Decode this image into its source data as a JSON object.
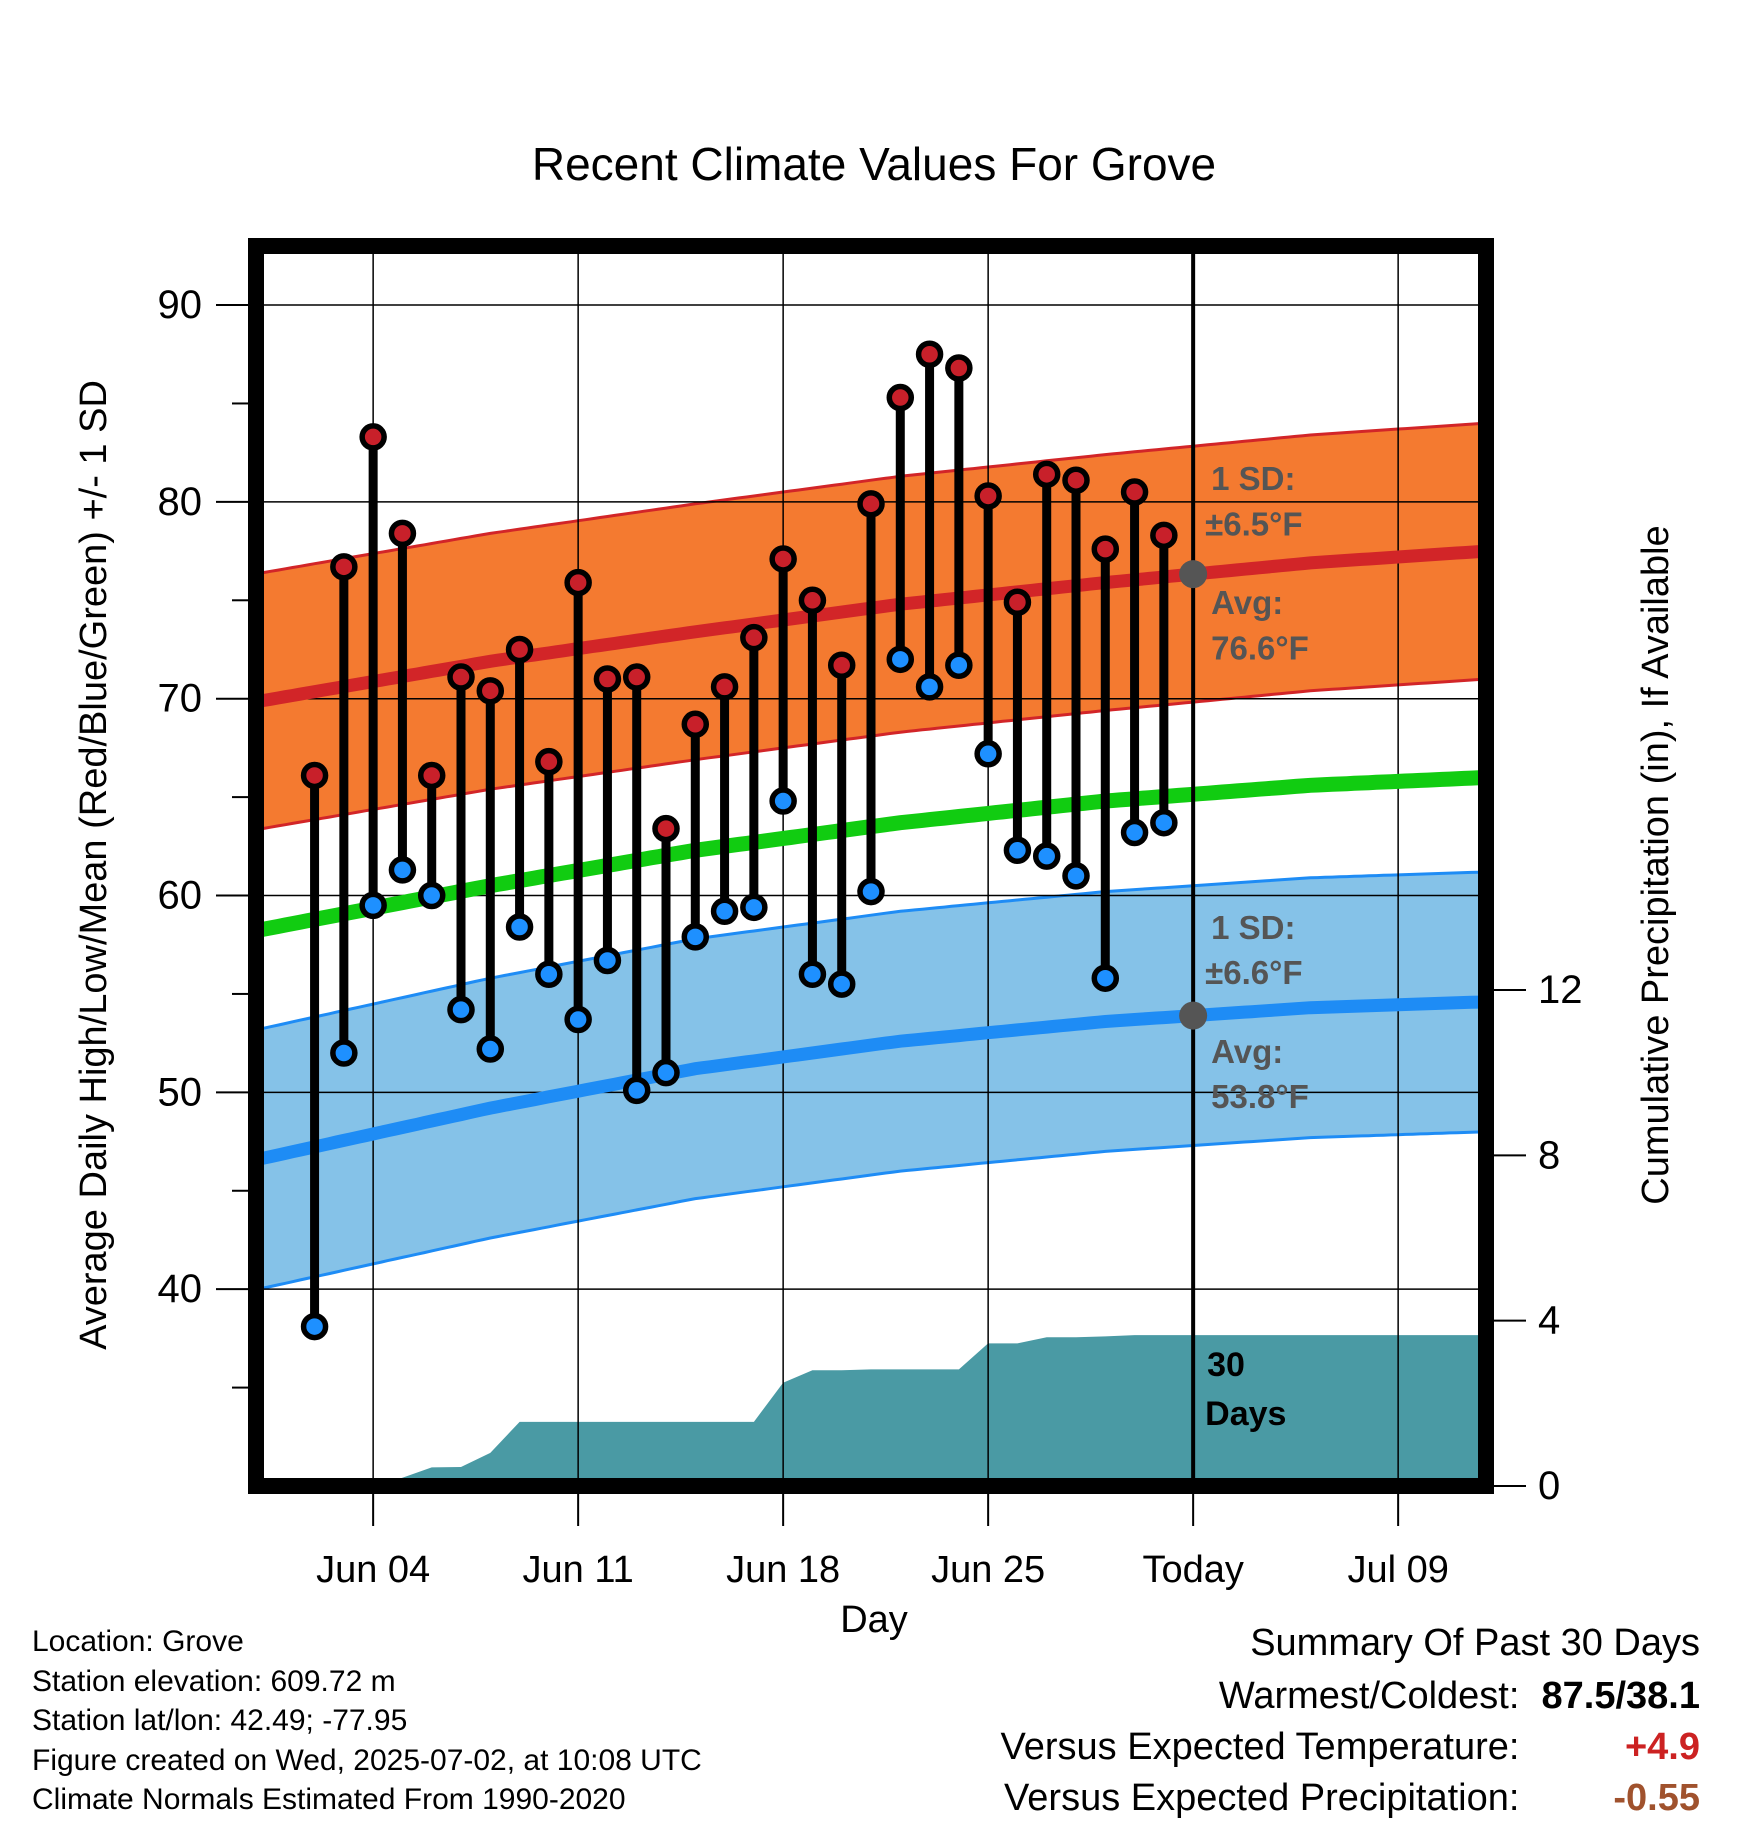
{
  "chart_data": {
    "type": "line",
    "title": "Recent Climate Values For Grove",
    "xlabel": "Day",
    "ylabel": "Average Daily High/Low/Mean (Red/Blue/Green) +/- 1 SD",
    "y2label": "Cumulative Precipitation (in), If Available",
    "ylim": [
      30,
      93
    ],
    "y2lim": [
      0,
      30
    ],
    "yticks": [
      "40",
      "50",
      "60",
      "70",
      "80",
      "90"
    ],
    "y2ticks": [
      "0",
      "4",
      "8",
      "12"
    ],
    "xlim": [
      "2025-05-31",
      "2025-07-12"
    ],
    "x_tick_dates": [
      "2025-06-04",
      "2025-06-11",
      "2025-06-18",
      "2025-06-25",
      "2025-07-02",
      "2025-07-09"
    ],
    "x_tick_labels": [
      "Jun 04",
      "Jun 11",
      "Jun 18",
      "Jun 25",
      "Today",
      "Jul 09"
    ],
    "grid": true,
    "today": "2025-07-02",
    "observed": {
      "dates": [
        "2025-06-02",
        "2025-06-03",
        "2025-06-04",
        "2025-06-05",
        "2025-06-06",
        "2025-06-07",
        "2025-06-08",
        "2025-06-09",
        "2025-06-10",
        "2025-06-11",
        "2025-06-12",
        "2025-06-13",
        "2025-06-14",
        "2025-06-15",
        "2025-06-16",
        "2025-06-17",
        "2025-06-18",
        "2025-06-19",
        "2025-06-20",
        "2025-06-21",
        "2025-06-22",
        "2025-06-23",
        "2025-06-24",
        "2025-06-25",
        "2025-06-26",
        "2025-06-27",
        "2025-06-28",
        "2025-06-29",
        "2025-06-30",
        "2025-07-01"
      ],
      "high": [
        66.1,
        76.7,
        83.3,
        78.4,
        66.1,
        71.1,
        70.4,
        72.5,
        66.8,
        75.9,
        71.0,
        71.1,
        63.4,
        68.7,
        70.6,
        73.1,
        77.1,
        75.0,
        71.7,
        79.9,
        85.3,
        87.5,
        86.8,
        80.3,
        74.9,
        81.4,
        81.1,
        77.6,
        80.5,
        78.3
      ],
      "low": [
        38.1,
        52.0,
        59.5,
        61.3,
        60.0,
        54.2,
        52.2,
        58.4,
        56.0,
        53.7,
        56.7,
        50.1,
        51.0,
        57.9,
        59.2,
        59.4,
        64.8,
        56.0,
        55.5,
        60.2,
        72.0,
        70.6,
        71.7,
        67.2,
        62.3,
        62.0,
        61.0,
        55.8,
        63.2,
        63.7
      ]
    },
    "normals": {
      "dates": [
        "2025-06-01",
        "2025-06-08",
        "2025-06-15",
        "2025-06-22",
        "2025-06-29",
        "2025-07-06",
        "2025-07-12"
      ],
      "avg_high": [
        70.1,
        71.9,
        73.4,
        74.8,
        75.9,
        76.9,
        77.5
      ],
      "avg_mean": [
        58.5,
        60.5,
        62.3,
        63.7,
        64.8,
        65.6,
        66.0
      ],
      "avg_low": [
        46.9,
        49.2,
        51.2,
        52.6,
        53.6,
        54.3,
        54.6
      ],
      "high_sd": 6.5,
      "low_sd": 6.6
    },
    "precip_cumulative": {
      "dates": [
        "2025-06-03",
        "2025-06-04",
        "2025-06-05",
        "2025-06-06",
        "2025-06-07",
        "2025-06-08",
        "2025-06-09",
        "2025-06-10",
        "2025-06-11",
        "2025-06-12",
        "2025-06-13",
        "2025-06-14",
        "2025-06-15",
        "2025-06-16",
        "2025-06-17",
        "2025-06-18",
        "2025-06-19",
        "2025-06-20",
        "2025-06-21",
        "2025-06-22",
        "2025-06-23",
        "2025-06-24",
        "2025-06-25",
        "2025-06-26",
        "2025-06-27",
        "2025-06-28",
        "2025-06-29",
        "2025-06-30",
        "2025-07-01",
        "2025-07-12"
      ],
      "values": [
        0.0,
        0.0,
        0.2,
        0.45,
        0.46,
        0.8,
        1.55,
        1.55,
        1.55,
        1.55,
        1.55,
        1.55,
        1.55,
        1.55,
        1.55,
        2.5,
        2.8,
        2.8,
        2.82,
        2.82,
        2.82,
        2.82,
        3.45,
        3.45,
        3.6,
        3.6,
        3.62,
        3.65,
        3.65,
        3.65
      ]
    },
    "annotations": {
      "high_sd_label": "1 SD:",
      "high_sd_value": "±6.5°F",
      "high_avg_label": "Avg:",
      "high_avg_value": "76.6°F",
      "low_sd_label": "1 SD:",
      "low_sd_value": "±6.6°F",
      "low_avg_label": "Avg:",
      "low_avg_value": "53.8°F",
      "window_label_1": "30",
      "window_label_2": "Days"
    },
    "colors": {
      "high_point": "#c8202a",
      "low_point": "#1e90ff",
      "high_band": "#f47a30",
      "high_line": "#d22528",
      "low_band": "#85c2e8",
      "low_line": "#1e8cf5",
      "mean_line": "#11cc11",
      "precip": "#4a9aa4",
      "marker_today": "#555555"
    }
  },
  "footer": {
    "location": "Location: Grove",
    "elevation": "Station elevation: 609.72 m",
    "latlon": "Station lat/lon: 42.49; -77.95",
    "created": "Figure created on Wed, 2025-07-02, at 10:08 UTC",
    "normals": "Climate Normals Estimated From 1990-2020"
  },
  "summary": {
    "heading": "Summary Of Past 30 Days",
    "warm_cold_label": "Warmest/Coldest:",
    "warm_cold_value": "87.5/38.1",
    "temp_label": "Versus Expected Temperature:",
    "temp_value": "+4.9",
    "temp_color": "#cc2222",
    "precip_label": "Versus Expected Precipitation:",
    "precip_value": "-0.55",
    "precip_color": "#a0522d"
  }
}
